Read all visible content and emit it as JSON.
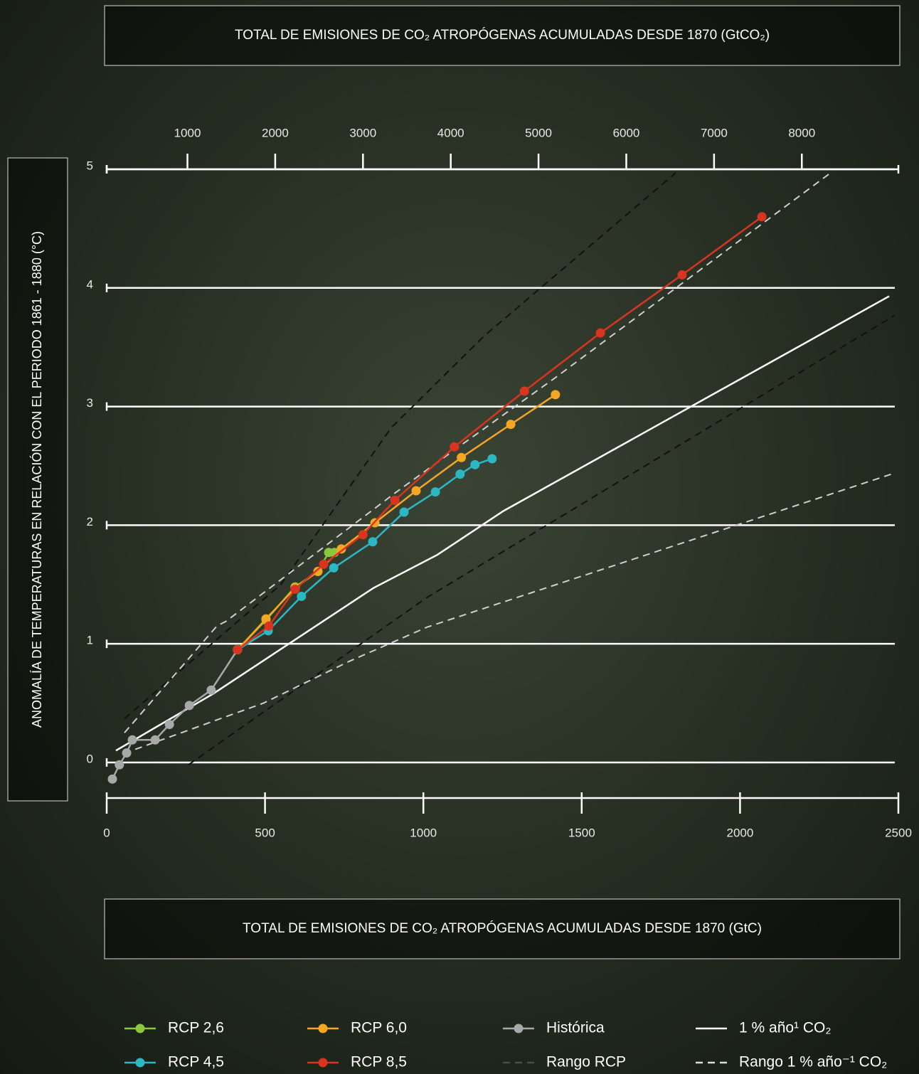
{
  "chart_data": {
    "type": "line",
    "title": "TOTAL DE EMISIONES DE CO₂ ATROPÓGENAS ACUMULADAS DESDE 1870 (GtCO₂)",
    "xlabel": "TOTAL DE EMISIONES DE CO₂ ATROPÓGENAS ACUMULADAS DESDE 1870 (GtC)",
    "ylabel": "ANOMALÍA DE TEMPERATURAS EN RELACIÓN CON EL PERIODO 1861 - 1880 (°C)",
    "xlim": [
      0,
      2500
    ],
    "xticks": [
      0,
      500,
      1000,
      1500,
      2000,
      2500
    ],
    "x2lim": [
      80,
      9100
    ],
    "x2ticks": [
      1000,
      2000,
      3000,
      4000,
      5000,
      6000,
      7000,
      8000
    ],
    "ylim": [
      -0.3,
      5
    ],
    "yticks": [
      0,
      1,
      2,
      3,
      4,
      5
    ],
    "grid": true,
    "series": [
      {
        "name": "RCP 2,6",
        "color": "#8dc63f",
        "marker": true,
        "x": [
          413,
          503,
          595,
          667,
          701,
          719
        ],
        "values": [
          0.95,
          1.2,
          1.48,
          1.61,
          1.77,
          1.77
        ]
      },
      {
        "name": "RCP 4,5",
        "color": "#2bb7c4",
        "marker": true,
        "x": [
          413,
          510,
          615,
          717,
          840,
          939,
          1038,
          1116,
          1163,
          1217
        ],
        "values": [
          0.95,
          1.11,
          1.4,
          1.64,
          1.86,
          2.11,
          2.28,
          2.43,
          2.51,
          2.56
        ]
      },
      {
        "name": "RCP 6,0",
        "color": "#f5a623",
        "marker": true,
        "x": [
          413,
          503,
          595,
          667,
          741,
          847,
          977,
          1120,
          1276,
          1417
        ],
        "values": [
          0.95,
          1.21,
          1.47,
          1.61,
          1.8,
          2.02,
          2.29,
          2.57,
          2.85,
          3.1
        ]
      },
      {
        "name": "RCP 8,5",
        "color": "#d9341f",
        "marker": true,
        "x": [
          413,
          512,
          595,
          685,
          809,
          910,
          1098,
          1319,
          1559,
          1817,
          2069
        ],
        "values": [
          0.95,
          1.15,
          1.46,
          1.67,
          1.92,
          2.21,
          2.66,
          3.13,
          3.62,
          4.11,
          4.6
        ]
      },
      {
        "name": "Histórica",
        "color": "#a8a8a8",
        "marker": true,
        "x": [
          18,
          40,
          63,
          81,
          153,
          198,
          261,
          330,
          413
        ],
        "values": [
          -0.14,
          -0.02,
          0.08,
          0.19,
          0.19,
          0.32,
          0.48,
          0.61,
          0.95
        ]
      },
      {
        "name": "Rango RCP",
        "color": "#cfcfcf",
        "marker": false,
        "dash": true,
        "x": [
          56,
          348,
          377,
          910,
          1101,
          1415,
          2281
        ],
        "values": [
          0.25,
          1.15,
          1.19,
          2.27,
          2.64,
          3.24,
          4.96
        ],
        "lower_x": [
          90,
          495,
          764,
          1011,
          2489
        ],
        "lower_values": [
          0.11,
          0.5,
          0.85,
          1.14,
          2.44
        ]
      },
      {
        "name": "1 % año¹ CO₂",
        "color": "#ffffff",
        "marker": false,
        "x": [
          29,
          337,
          842,
          1044,
          1253,
          2471
        ],
        "values": [
          0.1,
          0.58,
          1.47,
          1.75,
          2.12,
          3.93
        ]
      },
      {
        "name": "Rango 1 % año⁻¹ CO₂",
        "color": "#111111",
        "marker": false,
        "dash": true,
        "x": [
          56,
          550,
          898,
          1190,
          1797
        ],
        "values": [
          0.37,
          1.5,
          2.82,
          3.59,
          4.97
        ],
        "lower_x": [
          258,
          1011,
          2489
        ],
        "lower_values": [
          -0.02,
          1.39,
          3.77
        ]
      }
    ]
  }
}
